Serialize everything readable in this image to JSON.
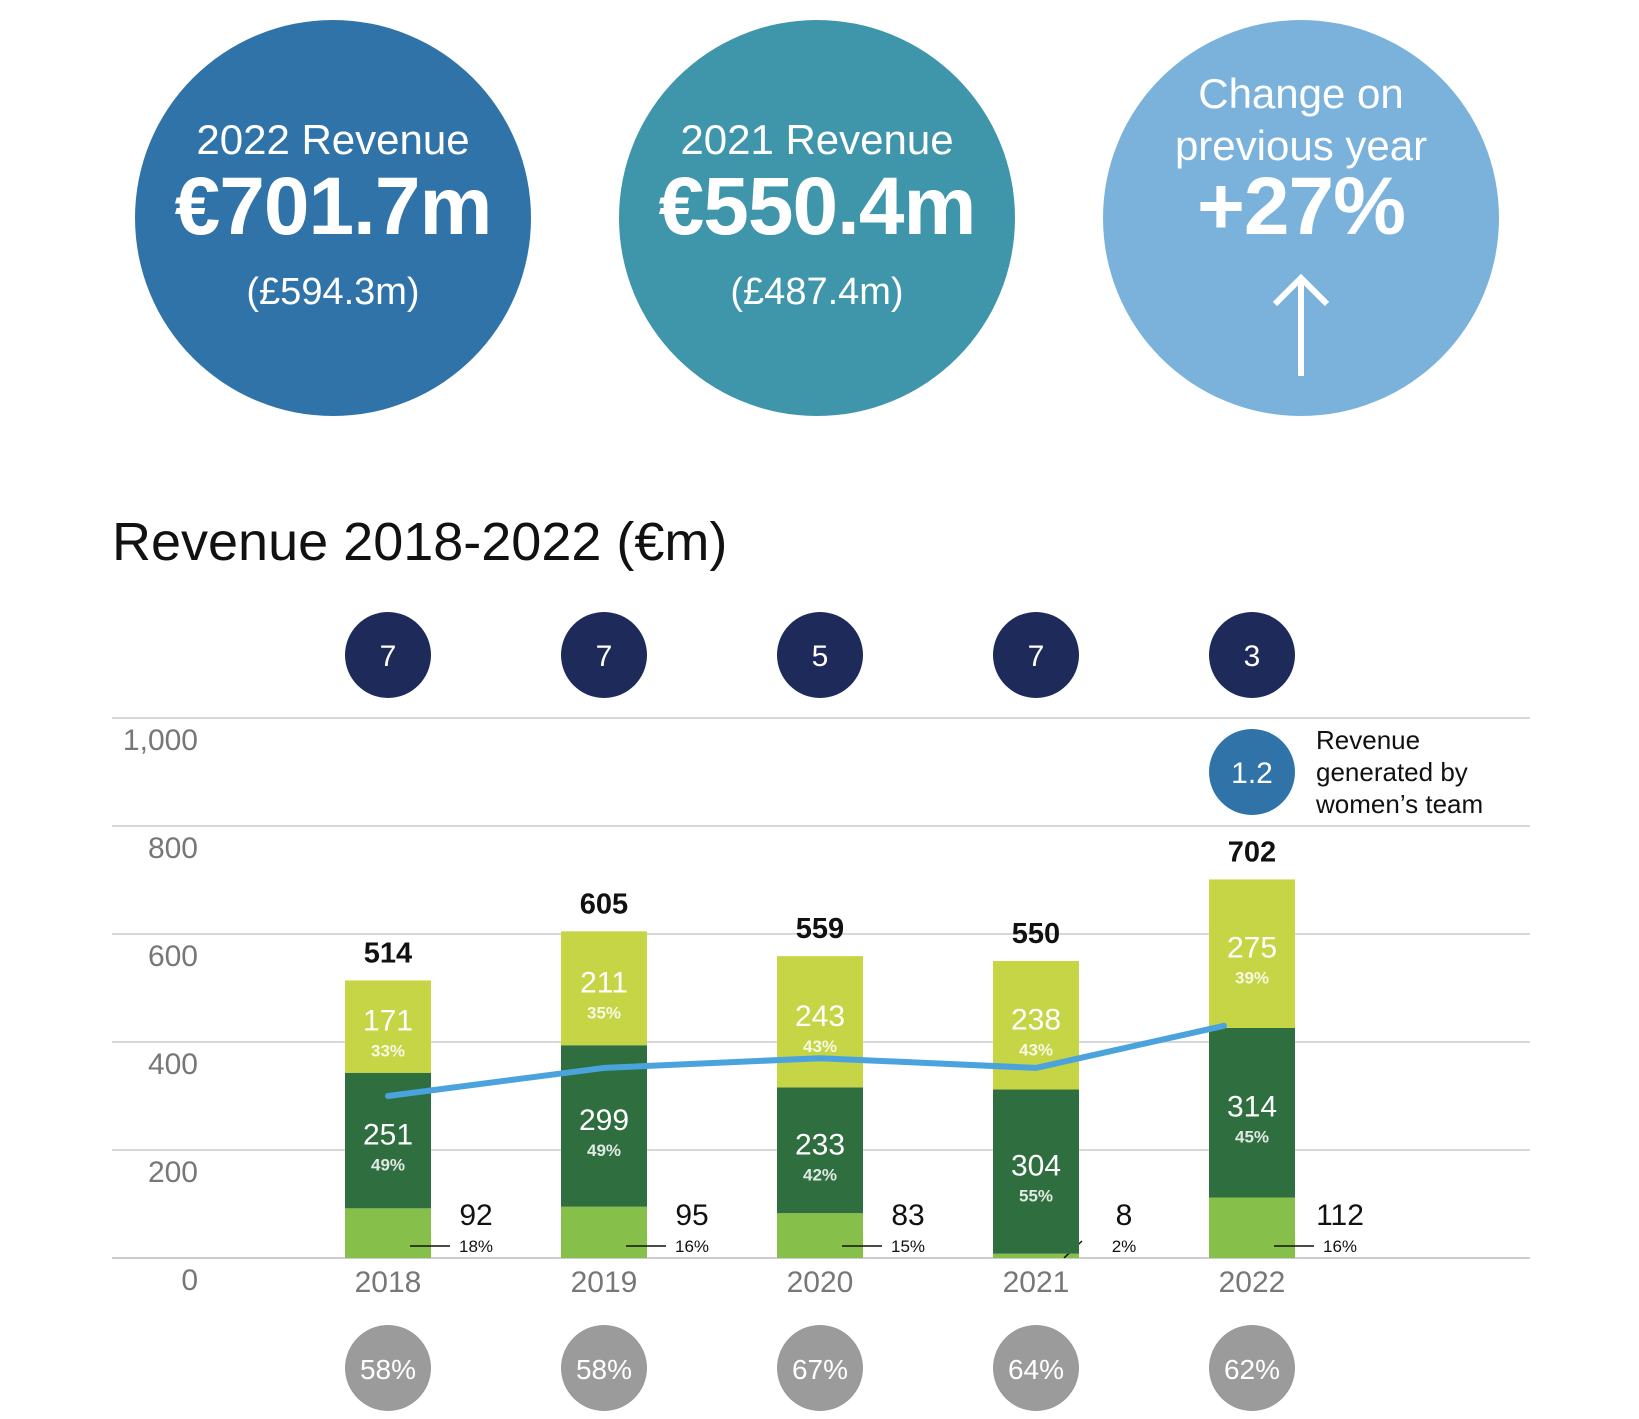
{
  "kpis": [
    {
      "label": "2022 Revenue",
      "value": "€701.7m",
      "sub": "(£594.3m)"
    },
    {
      "label": "2021 Revenue",
      "value": "€550.4m",
      "sub": "(£487.4m)"
    },
    {
      "label": "Change on\nprevious year",
      "value": "+27%",
      "icon": "up-arrow-icon"
    }
  ],
  "colors": {
    "kpi_2022": "#2f73a8",
    "kpi_2021": "#3f95aa",
    "kpi_change": "#7ab2dc",
    "top_segment": "#c6d546",
    "middle_segment": "#2e6e3f",
    "bottom_segment": "#86c04a",
    "line": "#4ba3dd",
    "top_bubble": "#1e2a5a",
    "bottom_bubble": "#9b9b9b",
    "women_bubble": "#2f73a8"
  },
  "chart_data": {
    "type": "bar",
    "title": "Revenue 2018-2022 (€m)",
    "categories": [
      "2018",
      "2019",
      "2020",
      "2021",
      "2022"
    ],
    "ylim": [
      0,
      1000
    ],
    "yticks": [
      "0",
      "200",
      "400",
      "600",
      "800",
      "1,000"
    ],
    "grid": true,
    "totals": [
      "514",
      "605",
      "559",
      "550",
      "702"
    ],
    "series": [
      {
        "values": [
          92,
          95,
          83,
          8,
          112
        ],
        "pct": [
          "18%",
          "16%",
          "15%",
          "2%",
          "16%"
        ]
      },
      {
        "values": [
          251,
          299,
          233,
          304,
          314
        ],
        "pct": [
          "49%",
          "49%",
          "42%",
          "55%",
          "45%"
        ]
      },
      {
        "values": [
          171,
          211,
          243,
          238,
          275
        ],
        "pct": [
          "33%",
          "35%",
          "43%",
          "43%",
          "39%"
        ]
      }
    ],
    "line": {
      "values": [
        300,
        352,
        370,
        352,
        430
      ]
    },
    "top_circles": [
      "7",
      "7",
      "5",
      "7",
      "3"
    ],
    "bottom_circles": [
      "58%",
      "58%",
      "67%",
      "64%",
      "62%"
    ],
    "annotation": {
      "value": "1.2",
      "text": [
        "Revenue",
        "generated by",
        "women’s team"
      ]
    }
  }
}
